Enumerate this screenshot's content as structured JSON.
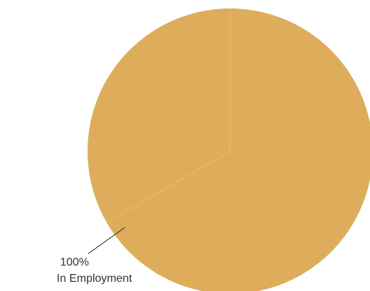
{
  "chart_data": {
    "type": "pie",
    "slices": [
      {
        "name": "In Employment",
        "value": 100,
        "label": "100%",
        "color": "#ddad5b"
      }
    ],
    "visible_seams_degrees": [
      0,
      240
    ],
    "seam_color": "#e6bf72"
  }
}
